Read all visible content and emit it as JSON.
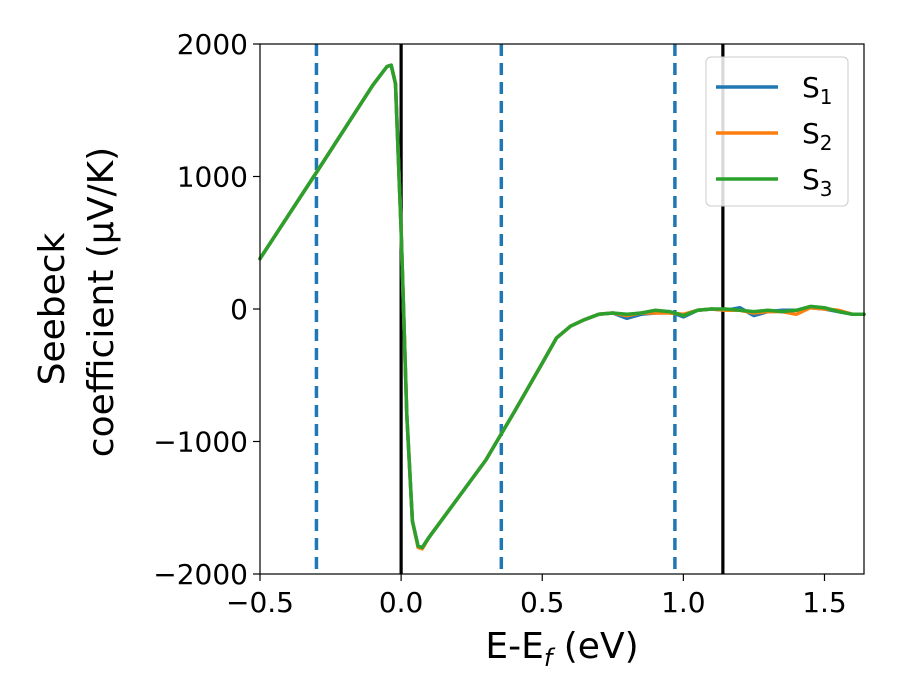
{
  "chart_data": {
    "type": "line",
    "xlabel": "E-E",
    "xlabel_sub": "f",
    "xlabel_unit": " (eV)",
    "ylabel_line1": "Seebeck",
    "ylabel_line2": "coefficient  (μV/K)",
    "xlim": [
      -0.5,
      1.64
    ],
    "ylim": [
      -2000,
      2000
    ],
    "xticks": [
      -0.5,
      0.0,
      0.5,
      1.0,
      1.5
    ],
    "xtick_labels": [
      "−0.5",
      "0.0",
      "0.5",
      "1.0",
      "1.5"
    ],
    "yticks": [
      -2000,
      -1000,
      0,
      1000,
      2000
    ],
    "ytick_labels": [
      "−2000",
      "−1000",
      "0",
      "1000",
      "2000"
    ],
    "legend_position": "top-right",
    "series": [
      {
        "name": "S",
        "name_sub": "1",
        "color": "#1f77b4",
        "x": [
          -0.5,
          -0.3,
          -0.1,
          -0.05,
          -0.035,
          -0.02,
          0.0,
          0.02,
          0.04,
          0.06,
          0.075,
          0.1,
          0.2,
          0.3,
          0.4,
          0.5,
          0.55,
          0.6,
          0.65,
          0.7,
          0.75,
          0.8,
          0.85,
          0.9,
          0.95,
          1.0,
          1.05,
          1.1,
          1.15,
          1.2,
          1.25,
          1.3,
          1.35,
          1.4,
          1.45,
          1.5,
          1.55,
          1.6,
          1.64
        ],
        "y": [
          380,
          1030,
          1690,
          1830,
          1840,
          1700,
          600,
          -800,
          -1600,
          -1790,
          -1800,
          -1720,
          -1430,
          -1140,
          -780,
          -410,
          -220,
          -130,
          -80,
          -40,
          -30,
          -70,
          -40,
          -30,
          -20,
          -60,
          -10,
          0,
          -10,
          10,
          -50,
          -20,
          -10,
          -10,
          10,
          0,
          -20,
          -40,
          -40
        ]
      },
      {
        "name": "S",
        "name_sub": "2",
        "color": "#ff7f0e",
        "x": [
          -0.5,
          -0.3,
          -0.1,
          -0.05,
          -0.035,
          -0.02,
          0.0,
          0.02,
          0.04,
          0.06,
          0.075,
          0.1,
          0.2,
          0.3,
          0.4,
          0.5,
          0.55,
          0.6,
          0.65,
          0.7,
          0.75,
          0.8,
          0.85,
          0.9,
          0.95,
          1.0,
          1.05,
          1.1,
          1.15,
          1.2,
          1.25,
          1.3,
          1.35,
          1.4,
          1.45,
          1.5,
          1.55,
          1.6,
          1.64
        ],
        "y": [
          380,
          1030,
          1690,
          1830,
          1840,
          1700,
          600,
          -800,
          -1600,
          -1800,
          -1810,
          -1720,
          -1430,
          -1140,
          -780,
          -410,
          -220,
          -130,
          -80,
          -40,
          -30,
          -50,
          -30,
          -30,
          -30,
          -40,
          -10,
          0,
          -10,
          -10,
          -30,
          -20,
          -20,
          -40,
          10,
          0,
          -10,
          -40,
          -40
        ]
      },
      {
        "name": "S",
        "name_sub": "3",
        "color": "#2ca02c",
        "x": [
          -0.5,
          -0.3,
          -0.1,
          -0.05,
          -0.035,
          -0.02,
          0.0,
          0.02,
          0.04,
          0.06,
          0.075,
          0.1,
          0.2,
          0.3,
          0.4,
          0.5,
          0.55,
          0.6,
          0.65,
          0.7,
          0.75,
          0.8,
          0.85,
          0.9,
          0.95,
          1.0,
          1.05,
          1.1,
          1.15,
          1.2,
          1.25,
          1.3,
          1.35,
          1.4,
          1.45,
          1.5,
          1.55,
          1.6,
          1.64
        ],
        "y": [
          380,
          1030,
          1690,
          1830,
          1840,
          1700,
          600,
          -800,
          -1600,
          -1790,
          -1800,
          -1720,
          -1430,
          -1140,
          -780,
          -410,
          -220,
          -130,
          -80,
          -40,
          -30,
          -40,
          -30,
          -10,
          -20,
          -50,
          -10,
          0,
          0,
          -10,
          -20,
          -10,
          -20,
          -10,
          20,
          10,
          -20,
          -40,
          -40
        ]
      }
    ],
    "vlines": [
      {
        "x": -0.3,
        "style": "dashed",
        "color": "#1f77b4"
      },
      {
        "x": 0.0,
        "style": "solid",
        "color": "#000000"
      },
      {
        "x": 0.355,
        "style": "dashed",
        "color": "#1f77b4"
      },
      {
        "x": 0.97,
        "style": "dashed",
        "color": "#1f77b4"
      },
      {
        "x": 1.14,
        "style": "solid",
        "color": "#000000"
      }
    ]
  }
}
